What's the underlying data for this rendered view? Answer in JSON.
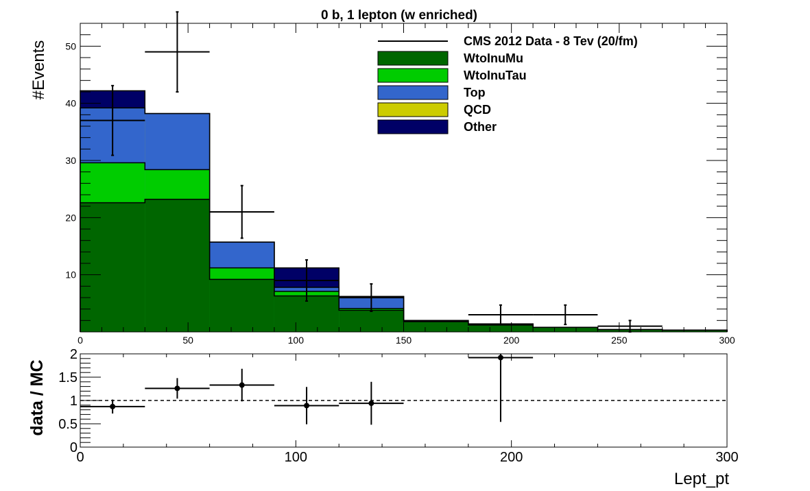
{
  "chart_data": [
    {
      "type": "bar",
      "title": "0 b, 1 lepton (w enriched)",
      "xlabel": "",
      "ylabel": "#Events",
      "xlim": [
        0,
        300
      ],
      "ylim": [
        0,
        54
      ],
      "bin_edges": [
        0,
        30,
        60,
        90,
        120,
        150,
        180,
        210,
        240,
        270,
        300
      ],
      "stacked": true,
      "series": [
        {
          "name": "WtoInuMu",
          "color": "#006600",
          "values": [
            22.6,
            23.2,
            9.2,
            6.3,
            3.8,
            1.8,
            1.2,
            0.8,
            0.4,
            0.3
          ]
        },
        {
          "name": "WtoInuTau",
          "color": "#00cc00",
          "values": [
            7.0,
            5.2,
            2.0,
            0.8,
            0.3,
            0.1,
            0.1,
            0.0,
            0.0,
            0.0
          ]
        },
        {
          "name": "Top",
          "color": "#3366cc",
          "values": [
            9.6,
            9.8,
            4.5,
            0.7,
            2.1,
            0.1,
            0.1,
            0.0,
            0.0,
            0.0
          ]
        },
        {
          "name": "QCD",
          "color": "#cccc00",
          "values": [
            0,
            0,
            0,
            0,
            0,
            0,
            0,
            0,
            0,
            0
          ]
        },
        {
          "name": "Other",
          "color": "#000066",
          "values": [
            3.0,
            0.0,
            0.0,
            3.4,
            0.0,
            0.0,
            0.0,
            0.0,
            0.0,
            0.0
          ]
        }
      ],
      "data": {
        "name": "CMS 2012 Data - 8 Tev (20/fm)",
        "x": [
          15,
          45,
          75,
          105,
          135,
          165,
          195,
          225,
          255,
          285
        ],
        "y": [
          37,
          49,
          21,
          9,
          6,
          0,
          3,
          3,
          1,
          0
        ],
        "yerr": [
          6.1,
          7.0,
          4.6,
          3.6,
          2.4,
          0,
          1.7,
          1.7,
          1.0,
          0
        ],
        "xerr": 15
      },
      "xticks": [
        0,
        50,
        100,
        150,
        200,
        250,
        300
      ],
      "yticks": [
        10,
        20,
        30,
        40,
        50
      ],
      "legend": "top-right",
      "grid": false
    },
    {
      "type": "scatter",
      "title": "",
      "xlabel": "Lept_pt",
      "ylabel": "data / MC",
      "xlim": [
        0,
        300
      ],
      "ylim": [
        0,
        2
      ],
      "x": [
        15,
        45,
        75,
        105,
        135,
        195
      ],
      "y": [
        0.87,
        1.26,
        1.33,
        0.89,
        0.94,
        1.92
      ],
      "yerr": [
        0.15,
        0.22,
        0.35,
        0.4,
        0.46,
        1.38
      ],
      "xerr": 15,
      "reference_line": 1,
      "xticks": [
        0,
        100,
        200,
        300
      ],
      "yticks": [
        "0",
        "0.5",
        "1",
        "1.5",
        "2"
      ],
      "yticks_values": [
        0,
        0.5,
        1,
        1.5,
        2
      ]
    }
  ]
}
